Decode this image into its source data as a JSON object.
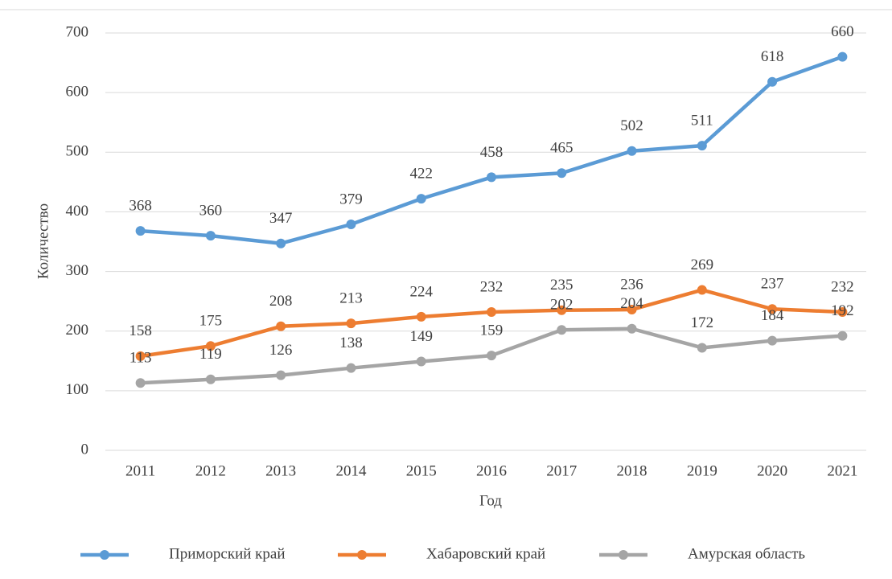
{
  "chart_data": {
    "type": "line",
    "x_label": "Год",
    "y_label": "Количество",
    "categories": [
      "2011",
      "2012",
      "2013",
      "2014",
      "2015",
      "2016",
      "2017",
      "2018",
      "2019",
      "2020",
      "2021"
    ],
    "series": [
      {
        "name": "Приморский край",
        "color": "#5b9bd5",
        "values": [
          368,
          360,
          347,
          379,
          422,
          458,
          465,
          502,
          511,
          618,
          660
        ]
      },
      {
        "name": "Хабаровский край",
        "color": "#ed7d31",
        "values": [
          158,
          175,
          208,
          213,
          224,
          232,
          235,
          236,
          269,
          237,
          232
        ]
      },
      {
        "name": "Амурская область",
        "color": "#a5a5a5",
        "values": [
          113,
          119,
          126,
          138,
          149,
          159,
          202,
          204,
          172,
          184,
          192
        ]
      }
    ],
    "ylim": [
      0,
      700
    ],
    "yticks": [
      0,
      100,
      200,
      300,
      400,
      500,
      600,
      700
    ],
    "grid": true,
    "legend": "bottom"
  }
}
